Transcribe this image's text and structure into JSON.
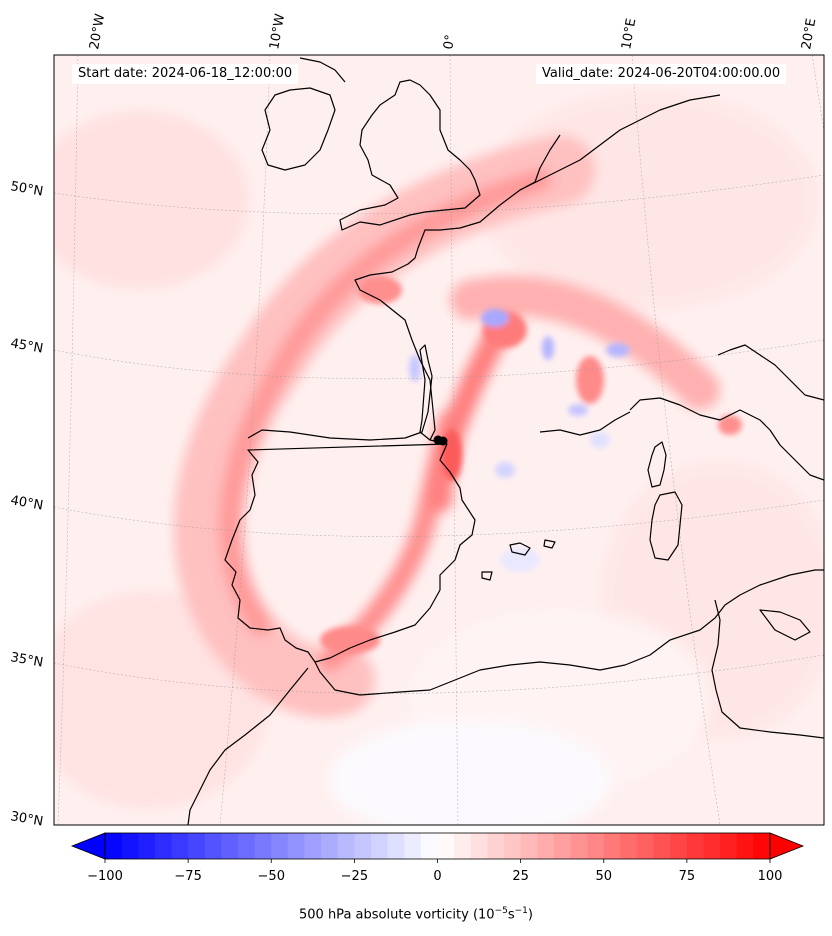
{
  "map": {
    "start_date_text": "Start date: 2024-06-18_12:00:00",
    "valid_date_text": "Valid_date: 2024-06-20T04:00:00.00",
    "lon_labels": [
      "20°W",
      "10°W",
      "0°",
      "10°E",
      "20°E"
    ],
    "lat_labels": [
      "50°N",
      "45°N",
      "40°N",
      "35°N",
      "30°N"
    ],
    "field": "500 hPa absolute vorticity",
    "marker": "black dot over Pyrenees",
    "colors": {
      "negative": "#0000ff",
      "neutral": "#ffffff",
      "positive": "#ff0000",
      "coast": "#000000"
    }
  },
  "colorbar": {
    "label_prefix": "500 hPa absolute vorticity (10",
    "label_exp1": "−5",
    "label_mid": "s",
    "label_exp2": "−1",
    "label_suffix": ")",
    "min": -100,
    "max": 100,
    "ticks": [
      "−100",
      "−75",
      "−50",
      "−25",
      "0",
      "25",
      "50",
      "75",
      "100"
    ],
    "tick_values": [
      -100,
      -75,
      -50,
      -25,
      0,
      25,
      50,
      75,
      100
    ],
    "levels": 40,
    "extend": "both",
    "colormap": "bwr"
  }
}
